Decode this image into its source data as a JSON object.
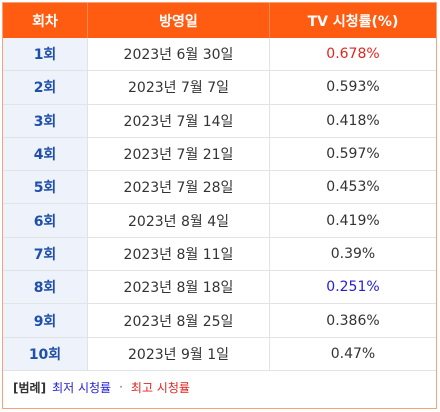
{
  "headers": {
    "episode": "회차",
    "air_date": "방영일",
    "rating": "TV 시청률(%)"
  },
  "rows": [
    {
      "episode": "1회",
      "air_date": "2023년 6월 30일",
      "rating": "0.678%",
      "mark": "high"
    },
    {
      "episode": "2회",
      "air_date": "2023년 7월 7일",
      "rating": "0.593%",
      "mark": ""
    },
    {
      "episode": "3회",
      "air_date": "2023년 7월 14일",
      "rating": "0.418%",
      "mark": ""
    },
    {
      "episode": "4회",
      "air_date": "2023년 7월 21일",
      "rating": "0.597%",
      "mark": ""
    },
    {
      "episode": "5회",
      "air_date": "2023년 7월 28일",
      "rating": "0.453%",
      "mark": ""
    },
    {
      "episode": "6회",
      "air_date": "2023년 8월 4일",
      "rating": "0.419%",
      "mark": ""
    },
    {
      "episode": "7회",
      "air_date": "2023년 8월 11일",
      "rating": "0.39%",
      "mark": ""
    },
    {
      "episode": "8회",
      "air_date": "2023년 8월 18일",
      "rating": "0.251%",
      "mark": "low"
    },
    {
      "episode": "9회",
      "air_date": "2023년 8월 25일",
      "rating": "0.386%",
      "mark": ""
    },
    {
      "episode": "10회",
      "air_date": "2023년 9월 1일",
      "rating": "0.47%",
      "mark": ""
    }
  ],
  "legend": {
    "label": "[범례]",
    "lowest": "최저 시청률",
    "separator": "·",
    "highest": "최고 시청률"
  },
  "colors": {
    "header_bg": "#ff5c12",
    "lowest": "#2420d6",
    "highest": "#e3251f",
    "episode_text": "#1f4fa8"
  }
}
